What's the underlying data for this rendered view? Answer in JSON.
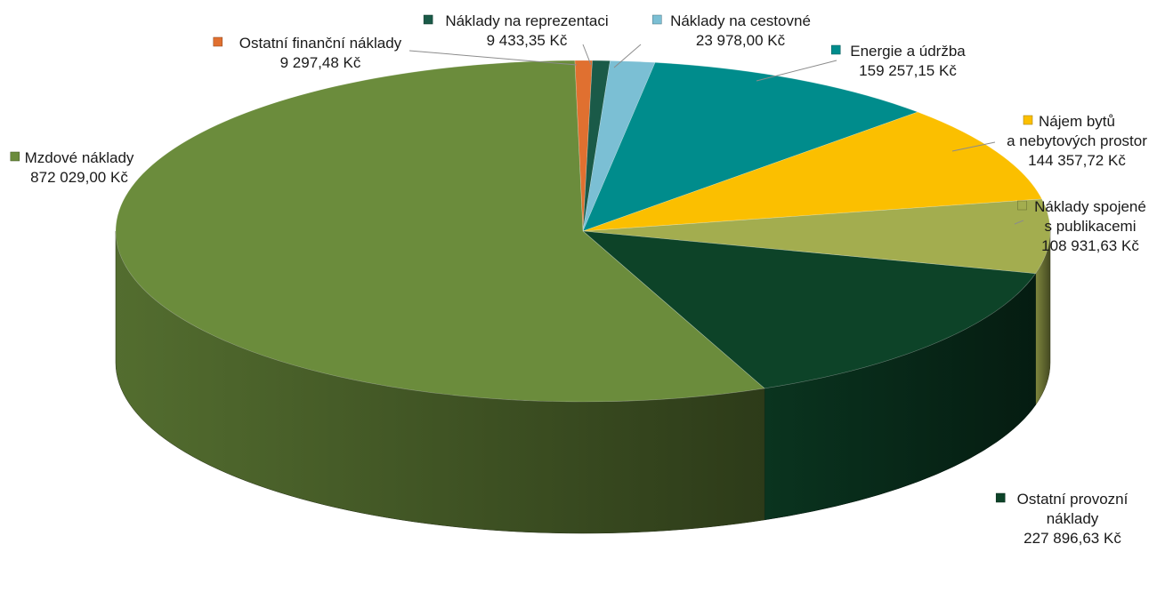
{
  "chart_data": {
    "type": "pie",
    "style": "3d",
    "title": "",
    "currency": "Kč",
    "slices": [
      {
        "name": "Ostatní finanční náklady",
        "value": 9297.48,
        "value_label": "9 297,48 Kč",
        "color": "#e07030"
      },
      {
        "name": "Náklady na reprezentaci",
        "value": 9433.35,
        "value_label": "9 433,35 Kč",
        "color": "#1a5a48"
      },
      {
        "name": "Náklady na cestovné",
        "value": 23978.0,
        "value_label": "23 978,00 Kč",
        "color": "#7bbfd4"
      },
      {
        "name": "Energie a údržba",
        "value": 159257.15,
        "value_label": "159 257,15 Kč",
        "color": "#008c8c"
      },
      {
        "name_lines": [
          "Nájem bytů",
          "a nebytových prostor"
        ],
        "value": 144357.72,
        "value_label": "144 357,72 Kč",
        "color": "#fbbf00"
      },
      {
        "name_lines": [
          "Náklady spojené",
          "s publikacemi"
        ],
        "value": 108931.63,
        "value_label": "108 931,63 Kč",
        "color": "#a3ad4f"
      },
      {
        "name_lines": [
          "Ostatní provozní",
          "náklady"
        ],
        "value": 227896.63,
        "value_label": "227 896,63 Kč",
        "color": "#0d4328"
      },
      {
        "name": "Mzdové náklady",
        "value": 872029.0,
        "value_label": "872 029,00 Kč",
        "color": "#6b8c3c"
      }
    ]
  }
}
